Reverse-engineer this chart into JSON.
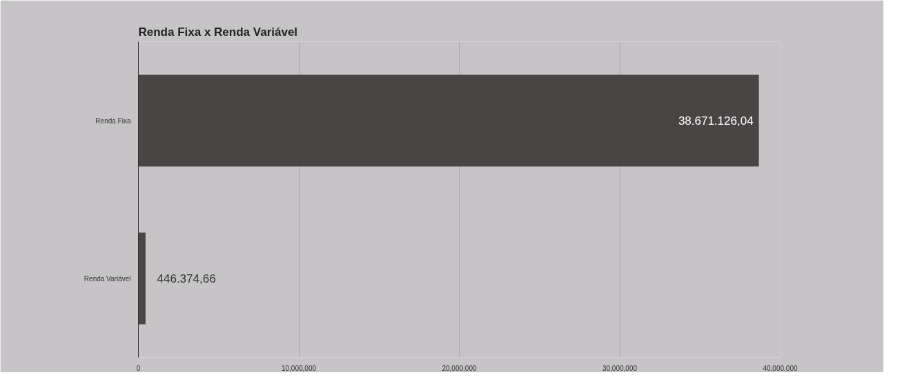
{
  "chart_data": {
    "type": "bar",
    "orientation": "horizontal",
    "title": "Renda Fixa x Renda Variável",
    "categories": [
      "Renda Fixa",
      "Renda Variável"
    ],
    "values": [
      38671126.04,
      446374.66
    ],
    "value_labels": [
      "38.671.126,04",
      "446.374,66"
    ],
    "color": "#4a4545",
    "xlim": [
      0,
      40000000
    ],
    "xticks": [
      0,
      {
        "value": 10000000,
        "label": "10,000,000"
      },
      {
        "value": 20000000,
        "label": "20,000,000"
      },
      {
        "value": 30000000,
        "label": "30,000,000"
      },
      {
        "value": 40000000,
        "label": "40,000,000"
      }
    ],
    "grid": "x"
  }
}
